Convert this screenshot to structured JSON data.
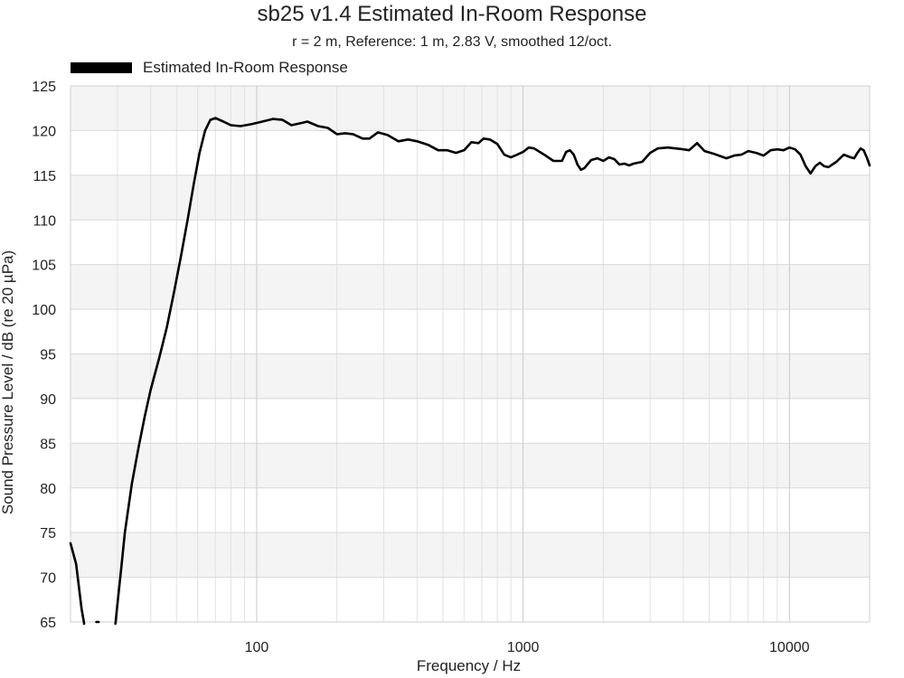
{
  "chart_data": {
    "type": "line",
    "title": "sb25 v1.4 Estimated In-Room Response",
    "subtitle": "r = 2 m,  Reference: 1 m, 2.83 V, smoothed 12/oct.",
    "xlabel": "Frequency / Hz",
    "ylabel": "Sound Pressure Level / dB (re 20 µPa)",
    "x_scale": "log",
    "xlim": [
      20,
      20000
    ],
    "ylim": [
      65,
      125
    ],
    "x_ticks": [
      100,
      1000,
      10000
    ],
    "x_tick_labels": [
      "100",
      "1000",
      "10000"
    ],
    "y_ticks": [
      65,
      70,
      75,
      80,
      85,
      90,
      95,
      100,
      105,
      110,
      115,
      120,
      125
    ],
    "y_tick_labels": [
      "65",
      "70",
      "75",
      "80",
      "85",
      "90",
      "95",
      "100",
      "105",
      "110",
      "115",
      "120",
      "125"
    ],
    "grid": true,
    "legend_position": "top-left",
    "series": [
      {
        "name": "Estimated In-Room Response",
        "color": "#000000",
        "segments": [
          [
            [
              20,
              73.8
            ],
            [
              21,
              71.5
            ],
            [
              22,
              66.5
            ],
            [
              22.5,
              64.8
            ]
          ],
          [
            [
              25,
              65.0
            ],
            [
              25.5,
              65.0
            ]
          ],
          [
            [
              29.5,
              64.8
            ],
            [
              30,
              67.0
            ],
            [
              31,
              71.0
            ],
            [
              32,
              75.0
            ],
            [
              34,
              80.5
            ],
            [
              36,
              84.5
            ],
            [
              38,
              88.0
            ],
            [
              40,
              91.0
            ],
            [
              43,
              94.5
            ],
            [
              46,
              98.0
            ],
            [
              49,
              102.0
            ],
            [
              52,
              106.0
            ],
            [
              55,
              110.0
            ],
            [
              58,
              114.0
            ],
            [
              61,
              117.5
            ],
            [
              64,
              120.0
            ],
            [
              67,
              121.2
            ],
            [
              70,
              121.4
            ],
            [
              75,
              121.0
            ],
            [
              80,
              120.6
            ],
            [
              87,
              120.5
            ],
            [
              95,
              120.7
            ],
            [
              105,
              121.0
            ],
            [
              115,
              121.3
            ],
            [
              125,
              121.2
            ],
            [
              135,
              120.6
            ],
            [
              145,
              120.8
            ],
            [
              155,
              121.0
            ],
            [
              170,
              120.5
            ],
            [
              185,
              120.3
            ],
            [
              200,
              119.6
            ],
            [
              215,
              119.7
            ],
            [
              230,
              119.6
            ],
            [
              250,
              119.1
            ],
            [
              265,
              119.1
            ],
            [
              285,
              119.8
            ],
            [
              310,
              119.5
            ],
            [
              340,
              118.8
            ],
            [
              370,
              119.0
            ],
            [
              400,
              118.8
            ],
            [
              440,
              118.4
            ],
            [
              480,
              117.8
            ],
            [
              520,
              117.8
            ],
            [
              560,
              117.5
            ],
            [
              600,
              117.8
            ],
            [
              640,
              118.7
            ],
            [
              680,
              118.6
            ],
            [
              710,
              119.1
            ],
            [
              750,
              119.0
            ],
            [
              800,
              118.5
            ],
            [
              850,
              117.3
            ],
            [
              900,
              117.0
            ],
            [
              950,
              117.3
            ],
            [
              1000,
              117.6
            ],
            [
              1050,
              118.1
            ],
            [
              1100,
              118.0
            ],
            [
              1200,
              117.3
            ],
            [
              1300,
              116.6
            ],
            [
              1400,
              116.6
            ],
            [
              1450,
              117.6
            ],
            [
              1500,
              117.8
            ],
            [
              1550,
              117.3
            ],
            [
              1600,
              116.2
            ],
            [
              1650,
              115.6
            ],
            [
              1700,
              115.8
            ],
            [
              1800,
              116.7
            ],
            [
              1900,
              116.9
            ],
            [
              2000,
              116.6
            ],
            [
              2100,
              117.0
            ],
            [
              2200,
              116.8
            ],
            [
              2300,
              116.2
            ],
            [
              2400,
              116.3
            ],
            [
              2500,
              116.1
            ],
            [
              2600,
              116.3
            ],
            [
              2800,
              116.5
            ],
            [
              3000,
              117.5
            ],
            [
              3200,
              118.0
            ],
            [
              3500,
              118.1
            ],
            [
              4000,
              117.9
            ],
            [
              4200,
              117.8
            ],
            [
              4500,
              118.6
            ],
            [
              4800,
              117.7
            ],
            [
              5200,
              117.4
            ],
            [
              5800,
              116.9
            ],
            [
              6200,
              117.2
            ],
            [
              6600,
              117.3
            ],
            [
              7000,
              117.7
            ],
            [
              7500,
              117.5
            ],
            [
              8000,
              117.2
            ],
            [
              8500,
              117.8
            ],
            [
              9000,
              117.9
            ],
            [
              9500,
              117.8
            ],
            [
              10000,
              118.1
            ],
            [
              10500,
              117.9
            ],
            [
              11000,
              117.3
            ],
            [
              11500,
              116.0
            ],
            [
              12000,
              115.2
            ],
            [
              12500,
              116.0
            ],
            [
              13000,
              116.4
            ],
            [
              13500,
              116.0
            ],
            [
              14000,
              115.9
            ],
            [
              15000,
              116.5
            ],
            [
              16000,
              117.3
            ],
            [
              17000,
              117.0
            ],
            [
              17500,
              116.9
            ],
            [
              18000,
              117.5
            ],
            [
              18500,
              118.0
            ],
            [
              19000,
              117.8
            ],
            [
              19500,
              117.0
            ],
            [
              20000,
              116.1
            ]
          ]
        ]
      }
    ]
  }
}
